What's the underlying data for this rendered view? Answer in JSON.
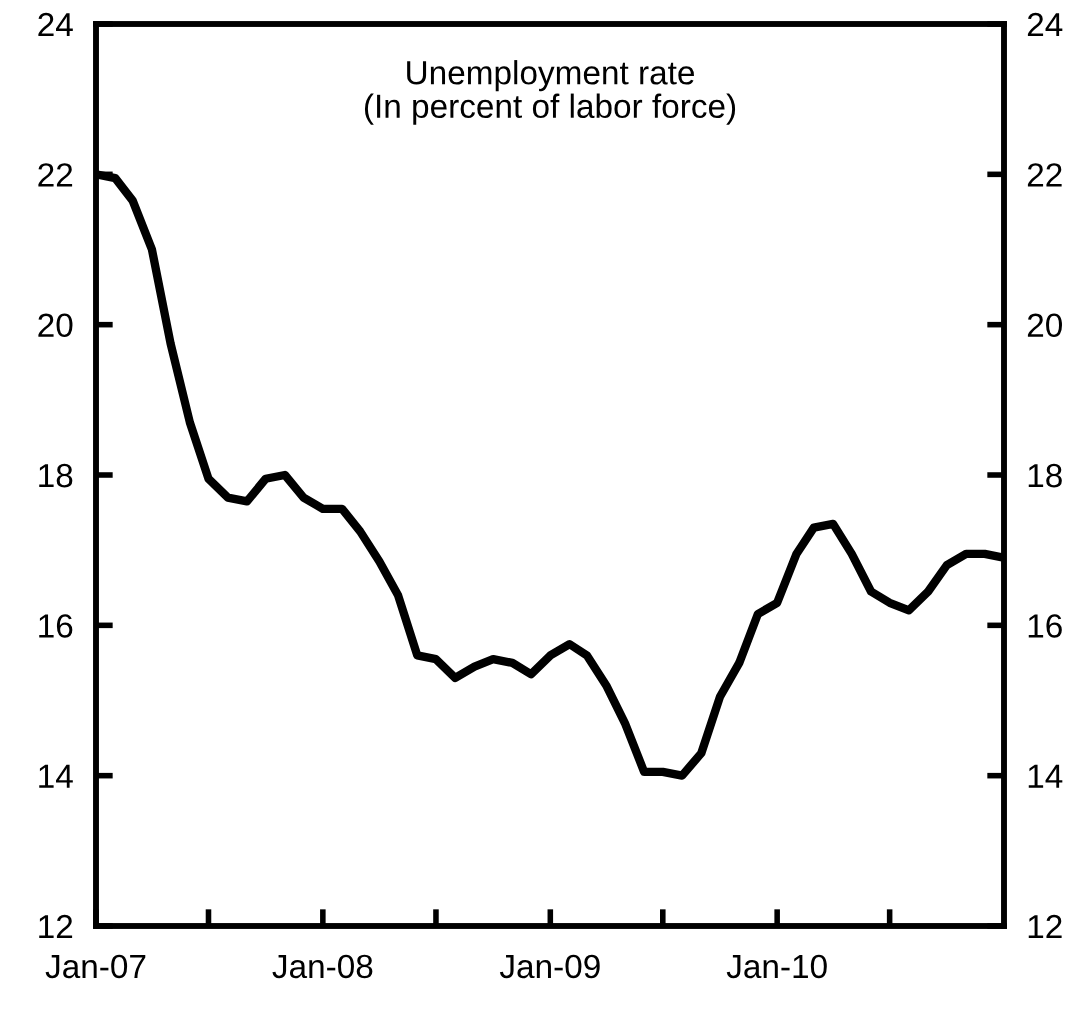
{
  "chart_data": {
    "type": "line",
    "title": "Unemployment rate\n(In percent of labor force)",
    "x": [
      "2007-01",
      "2007-02",
      "2007-03",
      "2007-04",
      "2007-05",
      "2007-06",
      "2007-07",
      "2007-08",
      "2007-09",
      "2007-10",
      "2007-11",
      "2007-12",
      "2008-01",
      "2008-02",
      "2008-03",
      "2008-04",
      "2008-05",
      "2008-06",
      "2008-07",
      "2008-08",
      "2008-09",
      "2008-10",
      "2008-11",
      "2008-12",
      "2009-01",
      "2009-02",
      "2009-03",
      "2009-04",
      "2009-05",
      "2009-06",
      "2009-07",
      "2009-08",
      "2009-09",
      "2009-10",
      "2009-11",
      "2009-12",
      "2010-01",
      "2010-02",
      "2010-03",
      "2010-04",
      "2010-05",
      "2010-06",
      "2010-07",
      "2010-08",
      "2010-09",
      "2010-10",
      "2010-11",
      "2010-12",
      "2011-01"
    ],
    "series": [
      {
        "color": "#000000",
        "values": [
          22.0,
          21.95,
          21.65,
          21.0,
          19.75,
          18.7,
          17.95,
          17.7,
          17.65,
          17.95,
          18.0,
          17.7,
          17.55,
          17.55,
          17.25,
          16.85,
          16.4,
          15.6,
          15.55,
          15.3,
          15.45,
          15.55,
          15.5,
          15.35,
          15.6,
          15.75,
          15.6,
          15.2,
          14.7,
          14.05,
          14.05,
          14.0,
          14.3,
          15.05,
          15.5,
          16.15,
          16.3,
          16.95,
          17.3,
          17.35,
          16.95,
          16.45,
          16.3,
          16.2,
          16.45,
          16.8,
          16.95,
          16.95,
          16.9
        ]
      }
    ],
    "xlim": [
      "2007-01",
      "2011-01"
    ],
    "xticks": [
      {
        "value": "2007-01",
        "label": "Jan-07"
      },
      {
        "value": "2007-07",
        "label": null
      },
      {
        "value": "2008-01",
        "label": "Jan-08"
      },
      {
        "value": "2008-07",
        "label": null
      },
      {
        "value": "2009-01",
        "label": "Jan-09"
      },
      {
        "value": "2009-07",
        "label": null
      },
      {
        "value": "2010-01",
        "label": "Jan-10"
      },
      {
        "value": "2010-07",
        "label": null
      }
    ],
    "ylim": [
      12,
      24
    ],
    "yticks": [
      12,
      14,
      16,
      18,
      20,
      22,
      24
    ],
    "y2lim": [
      12,
      24
    ],
    "y2ticks": [
      12,
      14,
      16,
      18,
      20,
      22,
      24
    ],
    "line_style": "solid",
    "marker": "none",
    "grid": false,
    "legend": false
  }
}
